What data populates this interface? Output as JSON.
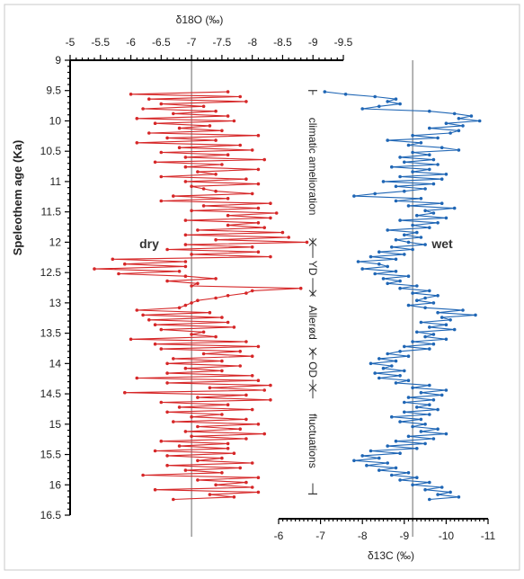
{
  "chart_data": {
    "type": "line",
    "ylabel": "Speleothem age (Ka)",
    "y_axis": {
      "min": 9,
      "max": 16.5,
      "reversed": true,
      "ticks": [
        "9",
        "9.5",
        "10",
        "10.5",
        "11",
        "11.5",
        "12",
        "12.5",
        "13",
        "13.5",
        "14",
        "14.5",
        "15",
        "15.5",
        "16",
        "16.5"
      ]
    },
    "top_axis": {
      "label": "δ18O (‰)",
      "min": -5,
      "max": -9.5,
      "reversed": true,
      "ticks": [
        "-5",
        "-5.5",
        "-6",
        "-6.5",
        "-7",
        "-7.5",
        "-8",
        "-8.5",
        "-9",
        "-9.5"
      ],
      "reference_line": -7
    },
    "bottom_axis": {
      "label": "δ13C (‰)",
      "min": -6,
      "max": -11,
      "reversed": true,
      "ticks": [
        "-6",
        "-7",
        "-8",
        "-9",
        "-10",
        "-11"
      ],
      "reference_line": -9.2
    },
    "labels": {
      "left": "dry",
      "right": "wet"
    },
    "periods": [
      {
        "label": "climatic amelioration",
        "from": 9.5,
        "to": 12.0
      },
      {
        "label": "YD",
        "from": 12.0,
        "to": 12.85
      },
      {
        "label": "Allerød",
        "from": 12.85,
        "to": 13.8
      },
      {
        "label": "OD",
        "from": 13.8,
        "to": 14.4
      },
      {
        "label": "fluctuations",
        "from": 14.4,
        "to": 16.15
      }
    ],
    "series": [
      {
        "color": "#d62728",
        "age": [
          9.52,
          9.56,
          9.6,
          9.64,
          9.68,
          9.72,
          9.76,
          9.8,
          9.84,
          9.88,
          9.92,
          9.96,
          10.0,
          10.04,
          10.08,
          10.12,
          10.16,
          10.2,
          10.24,
          10.28,
          10.32,
          10.36,
          10.4,
          10.44,
          10.48,
          10.52,
          10.56,
          10.6,
          10.64,
          10.68,
          10.72,
          10.76,
          10.8,
          10.84,
          10.88,
          10.92,
          10.96,
          11.0,
          11.04,
          11.08,
          11.12,
          11.16,
          11.2,
          11.24,
          11.28,
          11.32,
          11.36,
          11.4,
          11.44,
          11.48,
          11.52,
          11.56,
          11.6,
          11.64,
          11.68,
          11.72,
          11.76,
          11.8,
          11.84,
          11.88,
          11.92,
          11.96,
          12.0,
          12.04,
          12.08,
          12.12,
          12.16,
          12.2,
          12.24,
          12.28,
          12.32,
          12.36,
          12.4,
          12.44,
          12.48,
          12.52,
          12.56,
          12.6,
          12.64,
          12.68,
          12.72,
          12.76,
          12.8,
          12.84,
          12.88,
          12.92,
          12.96,
          13.0,
          13.04,
          13.08,
          13.12,
          13.16,
          13.2,
          13.24,
          13.28,
          13.32,
          13.36,
          13.4,
          13.44,
          13.48,
          13.52,
          13.56,
          13.6,
          13.64,
          13.68,
          13.72,
          13.76,
          13.8,
          13.84,
          13.88,
          13.92,
          13.96,
          14.0,
          14.04,
          14.08,
          14.12,
          14.16,
          14.2,
          14.24,
          14.28,
          14.32,
          14.36,
          14.4,
          14.44,
          14.48,
          14.52,
          14.56,
          14.6,
          14.64,
          14.68,
          14.72,
          14.76,
          14.8,
          14.84,
          14.88,
          14.92,
          14.96,
          15.0,
          15.04,
          15.08,
          15.12,
          15.16,
          15.2,
          15.24,
          15.28,
          15.32,
          15.36,
          15.4,
          15.44,
          15.48,
          15.52,
          15.56,
          15.6,
          15.64,
          15.68,
          15.72,
          15.76,
          15.8,
          15.84,
          15.88,
          15.92,
          15.96,
          16.0,
          16.04,
          16.08,
          16.12,
          16.16,
          16.2,
          16.24
        ],
        "values": [
          -7.6,
          -6.0,
          -7.8,
          -6.3,
          -7.9,
          -6.5,
          -7.2,
          -6.2,
          -7.4,
          -6.7,
          -7.6,
          -6.1,
          -7.7,
          -6.4,
          -7.3,
          -6.8,
          -7.5,
          -6.3,
          -8.1,
          -6.6,
          -7.4,
          -6.1,
          -7.8,
          -6.8,
          -8.0,
          -6.5,
          -7.6,
          -6.9,
          -8.2,
          -6.4,
          -7.5,
          -6.9,
          -8.1,
          -7.1,
          -7.4,
          -6.5,
          -7.9,
          -6.9,
          -8.1,
          -7.0,
          -7.2,
          -7.4,
          -8.0,
          -6.7,
          -7.6,
          -6.5,
          -8.3,
          -7.2,
          -8.1,
          -7.0,
          -8.4,
          -7.6,
          -8.3,
          -6.9,
          -8.1,
          -7.6,
          -8.2,
          -7.1,
          -8.5,
          -6.9,
          -8.6,
          -7.4,
          -8.9,
          -6.9,
          -8.0,
          -6.6,
          -8.1,
          -7.0,
          -8.3,
          -5.7,
          -6.9,
          -5.9,
          -6.9,
          -5.4,
          -6.8,
          -5.8,
          -6.9,
          -7.4,
          -6.6,
          -7.1,
          -7.0,
          -8.8,
          -8.0,
          -7.9,
          -7.6,
          -7.4,
          -7.1,
          -7.0,
          -6.9,
          -6.8,
          -6.1,
          -7.3,
          -6.2,
          -7.5,
          -6.3,
          -7.6,
          -6.4,
          -7.7,
          -6.5,
          -7.2,
          -7.0,
          -7.4,
          -6.0,
          -7.9,
          -6.4,
          -8.1,
          -6.5,
          -7.8,
          -7.2,
          -8.0,
          -6.7,
          -7.5,
          -6.6,
          -7.8,
          -6.9,
          -7.5,
          -6.6,
          -8.0,
          -6.1,
          -8.1,
          -6.6,
          -8.3,
          -7.3,
          -8.2,
          -5.9,
          -7.9,
          -7.1,
          -8.3,
          -6.5,
          -7.6,
          -6.8,
          -8.0,
          -6.6,
          -7.5,
          -7.0,
          -7.9,
          -6.7,
          -8.1,
          -7.1,
          -7.8,
          -6.9,
          -8.2,
          -7.0,
          -7.9,
          -6.5,
          -7.6,
          -6.8,
          -7.6,
          -6.4,
          -7.7,
          -6.6,
          -7.5,
          -7.1,
          -8.0,
          -6.6,
          -7.8,
          -6.9,
          -7.5,
          -6.2,
          -8.1,
          -7.1,
          -7.9,
          -7.4,
          -8.0,
          -6.4,
          -8.1,
          -7.3,
          -7.7,
          -6.7,
          -7.6,
          -6.9
        ]
      },
      {
        "color": "#1f66b5",
        "age": [
          9.52,
          9.56,
          9.6,
          9.64,
          9.68,
          9.72,
          9.76,
          9.8,
          9.84,
          9.88,
          9.92,
          9.96,
          10.0,
          10.04,
          10.08,
          10.12,
          10.16,
          10.2,
          10.24,
          10.28,
          10.32,
          10.36,
          10.4,
          10.44,
          10.48,
          10.52,
          10.56,
          10.6,
          10.64,
          10.68,
          10.72,
          10.76,
          10.8,
          10.84,
          10.88,
          10.92,
          10.96,
          11.0,
          11.04,
          11.08,
          11.12,
          11.16,
          11.2,
          11.24,
          11.28,
          11.32,
          11.36,
          11.4,
          11.44,
          11.48,
          11.52,
          11.56,
          11.6,
          11.64,
          11.68,
          11.72,
          11.76,
          11.8,
          11.84,
          11.88,
          11.92,
          11.96,
          12.0,
          12.04,
          12.08,
          12.12,
          12.16,
          12.2,
          12.24,
          12.28,
          12.32,
          12.36,
          12.4,
          12.44,
          12.48,
          12.52,
          12.56,
          12.6,
          12.64,
          12.68,
          12.72,
          12.76,
          12.8,
          12.84,
          12.88,
          12.92,
          12.96,
          13.0,
          13.04,
          13.08,
          13.12,
          13.16,
          13.2,
          13.24,
          13.28,
          13.32,
          13.36,
          13.4,
          13.44,
          13.48,
          13.52,
          13.56,
          13.6,
          13.64,
          13.68,
          13.72,
          13.76,
          13.8,
          13.84,
          13.88,
          13.92,
          13.96,
          14.0,
          14.04,
          14.08,
          14.12,
          14.16,
          14.2,
          14.24,
          14.28,
          14.32,
          14.36,
          14.4,
          14.44,
          14.48,
          14.52,
          14.56,
          14.6,
          14.64,
          14.68,
          14.72,
          14.76,
          14.8,
          14.84,
          14.88,
          14.92,
          14.96,
          15.0,
          15.04,
          15.08,
          15.12,
          15.16,
          15.2,
          15.24,
          15.28,
          15.32,
          15.36,
          15.4,
          15.44,
          15.48,
          15.52,
          15.56,
          15.6,
          15.64,
          15.68,
          15.72,
          15.76,
          15.8,
          15.84,
          15.88,
          15.92,
          15.96,
          16.0,
          16.04,
          16.08,
          16.12,
          16.16,
          16.2,
          16.24
        ],
        "values": [
          -7.1,
          -7.6,
          -8.3,
          -8.8,
          -8.6,
          -8.9,
          -8.4,
          -8.0,
          -9.6,
          -10.2,
          -10.6,
          -10.3,
          -10.8,
          -10.0,
          -10.4,
          -9.6,
          -10.3,
          -10.1,
          -9.2,
          -9.8,
          -8.6,
          -9.4,
          -9.1,
          -9.9,
          -10.3,
          -9.2,
          -9.6,
          -8.9,
          -9.7,
          -9.0,
          -9.8,
          -8.7,
          -9.6,
          -9.2,
          -10.0,
          -8.9,
          -9.9,
          -8.5,
          -9.7,
          -8.8,
          -9.5,
          -9.0,
          -8.3,
          -7.8,
          -9.4,
          -8.8,
          -9.9,
          -9.1,
          -10.2,
          -9.5,
          -9.7,
          -9.3,
          -10.0,
          -8.9,
          -9.8,
          -9.2,
          -9.6,
          -8.6,
          -9.3,
          -9.0,
          -9.4,
          -8.8,
          -9.1,
          -9.5,
          -8.7,
          -9.2,
          -8.4,
          -9.0,
          -8.2,
          -8.8,
          -7.9,
          -8.4,
          -8.6,
          -8.0,
          -8.8,
          -8.3,
          -9.1,
          -8.5,
          -8.9,
          -8.6,
          -9.3,
          -8.9,
          -9.6,
          -9.2,
          -9.8,
          -9.5,
          -9.3,
          -9.7,
          -9.1,
          -9.5,
          -10.4,
          -9.8,
          -10.7,
          -9.9,
          -10.1,
          -9.4,
          -10.0,
          -9.6,
          -10.2,
          -9.3,
          -9.7,
          -9.5,
          -10.0,
          -9.2,
          -9.7,
          -9.0,
          -9.6,
          -8.9,
          -8.6,
          -9.1,
          -8.4,
          -8.8,
          -8.2,
          -8.7,
          -8.5,
          -9.0,
          -8.3,
          -8.9,
          -8.4,
          -9.1,
          -8.8,
          -9.6,
          -9.2,
          -10.0,
          -9.4,
          -9.9,
          -9.1,
          -9.7,
          -9.0,
          -9.6,
          -9.3,
          -9.8,
          -9.0,
          -9.6,
          -8.7,
          -9.4,
          -8.9,
          -9.5,
          -9.2,
          -9.8,
          -9.4,
          -10.0,
          -9.1,
          -9.7,
          -8.8,
          -9.5,
          -8.6,
          -9.3,
          -8.2,
          -8.9,
          -8.0,
          -8.4,
          -7.8,
          -8.6,
          -8.1,
          -8.8,
          -8.4,
          -9.1,
          -8.7,
          -9.3,
          -8.9,
          -9.6,
          -9.2,
          -9.9,
          -9.5,
          -10.1,
          -9.8,
          -10.3,
          -9.6,
          -10.2,
          -9.9
        ]
      }
    ]
  }
}
